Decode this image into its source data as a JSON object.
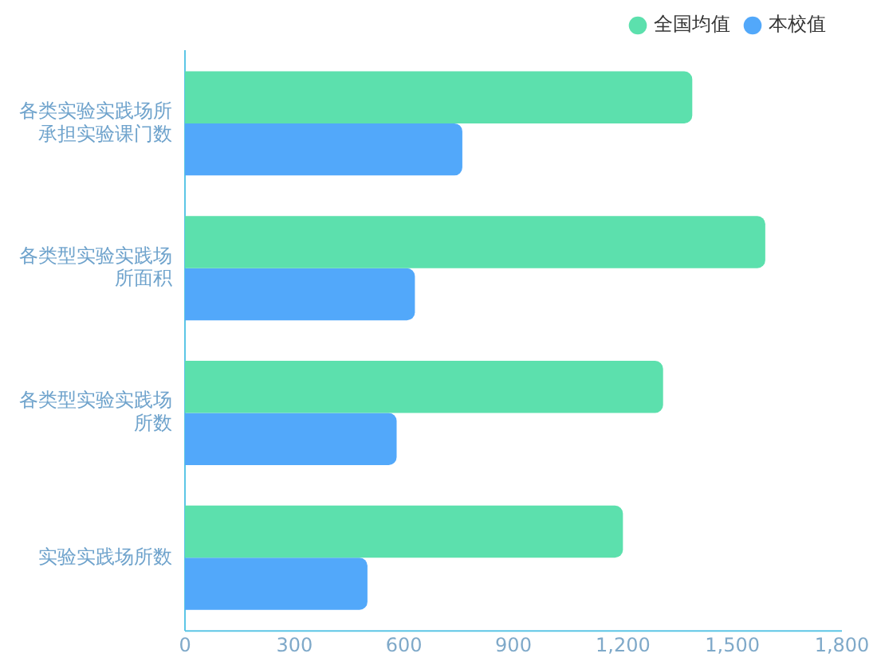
{
  "chart_data": {
    "type": "bar",
    "orientation": "horizontal",
    "categories": [
      "各类实验实践场所承担实验课门数",
      "各类型实验实践场所面积",
      "各类型实验实践场所数",
      "实验实践场所数"
    ],
    "series": [
      {
        "name": "全国均值",
        "color": "#5ce0ad",
        "values": [
          1390,
          1590,
          1310,
          1200
        ]
      },
      {
        "name": "本校值",
        "color": "#52a8fa",
        "values": [
          760,
          630,
          580,
          500
        ]
      }
    ],
    "xlim": [
      0,
      1800
    ],
    "xticks": [
      0,
      300,
      600,
      900,
      {
        "value": 1200,
        "label": "1,200"
      },
      {
        "value": 1500,
        "label": "1,500"
      },
      {
        "value": 1800,
        "label": "1,800"
      }
    ],
    "grid": false,
    "legend": "top right"
  }
}
